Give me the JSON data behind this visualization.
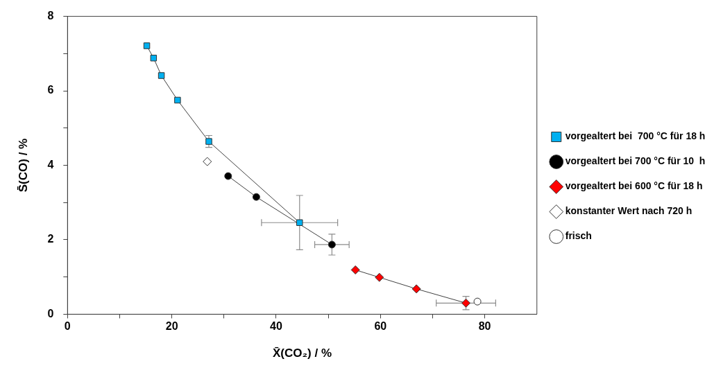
{
  "chart_data": {
    "type": "line",
    "xlabel": "X̄(CO₂) / %",
    "ylabel": "S̄(CO) / %",
    "xlim": [
      0,
      90
    ],
    "ylim": [
      0,
      8
    ],
    "xticks": [
      0,
      {
        "value": 10,
        "label": null
      },
      20,
      {
        "value": 30,
        "label": null
      },
      40,
      {
        "value": 50,
        "label": null
      },
      60,
      {
        "value": 70,
        "label": null
      },
      80
    ],
    "yticks": [
      0,
      {
        "value": 1,
        "label": null
      },
      2,
      {
        "value": 3,
        "label": null
      },
      4,
      {
        "value": 5,
        "label": null
      },
      6,
      {
        "value": 7,
        "label": null
      },
      8
    ],
    "grid": false,
    "legend": "right",
    "series": [
      {
        "name": "vorgealtert bei  700 °C für 18 h",
        "type": "line",
        "marker": "square",
        "color": "#00b0f0",
        "x": [
          15.2,
          16.5,
          18.0,
          21.1,
          27.1,
          44.5
        ],
        "values": [
          7.21,
          6.88,
          6.41,
          5.75,
          4.64,
          2.46
        ],
        "errors": [
          null,
          null,
          null,
          null,
          0.16,
          0.73
        ],
        "xerrors": [
          null,
          null,
          null,
          null,
          null,
          7.3
        ]
      },
      {
        "name": "vorgealtert bei 700 °C für 10  h",
        "type": "line",
        "marker": "circle",
        "color": "#000000",
        "x": [
          30.8,
          36.2,
          50.7
        ],
        "values": [
          3.71,
          3.15,
          1.87
        ],
        "errors": [
          null,
          null,
          0.28
        ],
        "xerrors": [
          null,
          null,
          3.3
        ]
      },
      {
        "name": "vorgealtert bei 600 °C für 18 h",
        "type": "line",
        "marker": "diamond",
        "color": "#ff0000",
        "x": [
          55.2,
          59.8,
          66.9,
          76.4
        ],
        "values": [
          1.19,
          0.99,
          0.68,
          0.3
        ],
        "errors": [
          null,
          null,
          null,
          0.18
        ],
        "xerrors": [
          null,
          null,
          null,
          5.7
        ]
      },
      {
        "name": "konstanter Wert nach 720 h",
        "type": "scatter",
        "marker": "diamond",
        "color": "#ffffff",
        "x": [
          26.8
        ],
        "values": [
          4.1
        ]
      },
      {
        "name": "frisch",
        "type": "scatter",
        "marker": "circle",
        "color": "#ffffff",
        "x": [
          78.6
        ],
        "values": [
          0.34
        ]
      }
    ]
  }
}
